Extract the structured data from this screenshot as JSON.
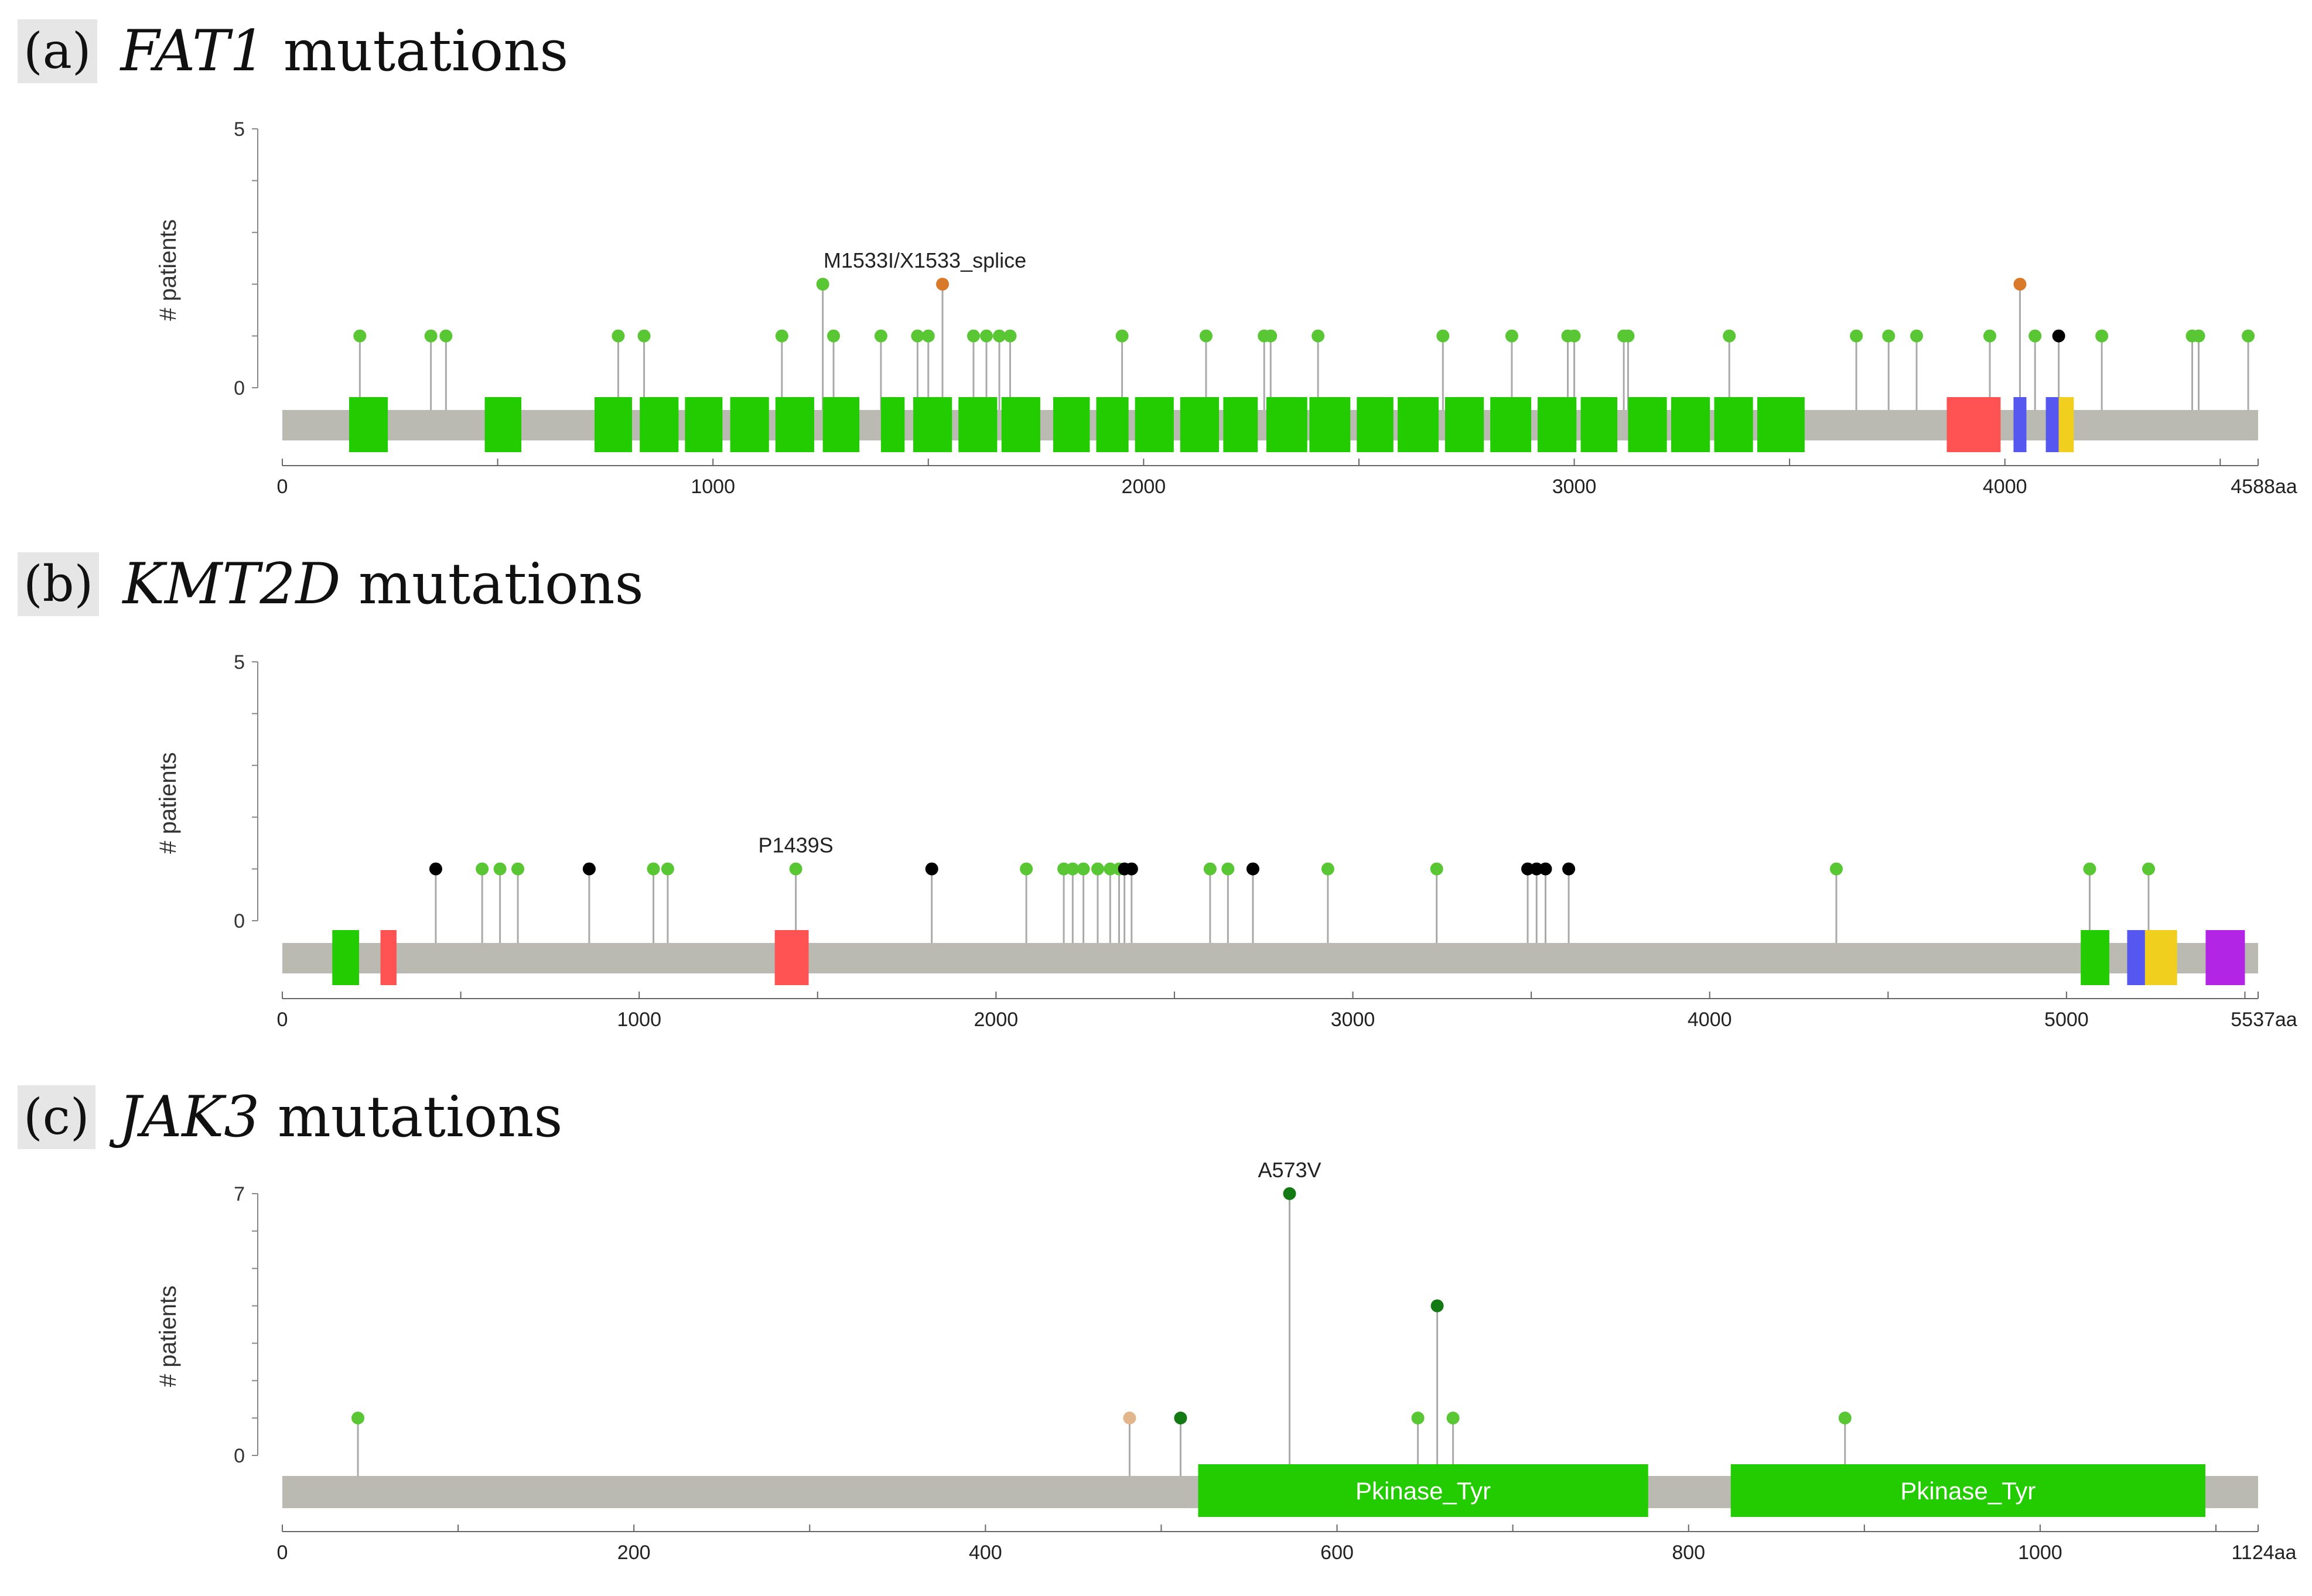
{
  "panels": [
    {
      "letter": "(a)",
      "gene": "FAT1",
      "title_suffix": "mutations"
    },
    {
      "letter": "(b)",
      "gene": "KMT2D",
      "title_suffix": "mutations"
    },
    {
      "letter": "(c)",
      "gene": "JAK3",
      "title_suffix": "mutations"
    }
  ],
  "chart_data": [
    {
      "type": "lollipop",
      "title": "FAT1 mutations",
      "ylabel": "# patients",
      "ylim": [
        0,
        5
      ],
      "yticks": [
        "0",
        "5"
      ],
      "protein_length": 4588,
      "xticks": [
        0,
        1000,
        2000,
        3000,
        4000
      ],
      "xtick_labels": [
        "0",
        "1000",
        "2000",
        "3000",
        "4000",
        "4588aa"
      ],
      "colors": {
        "missense": "#59c734",
        "truncating": "#000000",
        "splice": "#d97a2b",
        "domain_green": "#22cc00",
        "domain_red": "#ff5252",
        "domain_blue": "#5557f0",
        "domain_yellow": "#f0cf1e",
        "backbone": "#babab2"
      },
      "domains": [
        {
          "start": 155,
          "end": 245,
          "color": "domain_green"
        },
        {
          "start": 470,
          "end": 555,
          "color": "domain_green"
        },
        {
          "start": 725,
          "end": 812,
          "color": "domain_green"
        },
        {
          "start": 830,
          "end": 920,
          "color": "domain_green"
        },
        {
          "start": 935,
          "end": 1022,
          "color": "domain_green"
        },
        {
          "start": 1040,
          "end": 1130,
          "color": "domain_green"
        },
        {
          "start": 1145,
          "end": 1235,
          "color": "domain_green"
        },
        {
          "start": 1255,
          "end": 1340,
          "color": "domain_green"
        },
        {
          "start": 1390,
          "end": 1445,
          "color": "domain_green"
        },
        {
          "start": 1465,
          "end": 1555,
          "color": "domain_green"
        },
        {
          "start": 1570,
          "end": 1660,
          "color": "domain_green"
        },
        {
          "start": 1670,
          "end": 1760,
          "color": "domain_green"
        },
        {
          "start": 1790,
          "end": 1875,
          "color": "domain_green"
        },
        {
          "start": 1890,
          "end": 1965,
          "color": "domain_green"
        },
        {
          "start": 1980,
          "end": 2070,
          "color": "domain_green"
        },
        {
          "start": 2085,
          "end": 2175,
          "color": "domain_green"
        },
        {
          "start": 2185,
          "end": 2265,
          "color": "domain_green"
        },
        {
          "start": 2285,
          "end": 2380,
          "color": "domain_green"
        },
        {
          "start": 2385,
          "end": 2480,
          "color": "domain_green"
        },
        {
          "start": 2495,
          "end": 2580,
          "color": "domain_green"
        },
        {
          "start": 2590,
          "end": 2685,
          "color": "domain_green"
        },
        {
          "start": 2700,
          "end": 2790,
          "color": "domain_green"
        },
        {
          "start": 2805,
          "end": 2900,
          "color": "domain_green"
        },
        {
          "start": 2915,
          "end": 3005,
          "color": "domain_green"
        },
        {
          "start": 3015,
          "end": 3100,
          "color": "domain_green"
        },
        {
          "start": 3125,
          "end": 3215,
          "color": "domain_green"
        },
        {
          "start": 3225,
          "end": 3315,
          "color": "domain_green"
        },
        {
          "start": 3325,
          "end": 3415,
          "color": "domain_green"
        },
        {
          "start": 3425,
          "end": 3535,
          "color": "domain_green"
        },
        {
          "start": 3865,
          "end": 3990,
          "color": "domain_red"
        },
        {
          "start": 4020,
          "end": 4050,
          "color": "domain_blue"
        },
        {
          "start": 4095,
          "end": 4125,
          "color": "domain_blue"
        },
        {
          "start": 4125,
          "end": 4160,
          "color": "domain_yellow"
        }
      ],
      "mutations": [
        {
          "pos": 180,
          "count": 1,
          "type": "missense"
        },
        {
          "pos": 345,
          "count": 1,
          "type": "missense"
        },
        {
          "pos": 380,
          "count": 1,
          "type": "missense"
        },
        {
          "pos": 780,
          "count": 1,
          "type": "missense"
        },
        {
          "pos": 840,
          "count": 1,
          "type": "missense"
        },
        {
          "pos": 1160,
          "count": 1,
          "type": "missense"
        },
        {
          "pos": 1255,
          "count": 2,
          "type": "missense"
        },
        {
          "pos": 1280,
          "count": 1,
          "type": "missense"
        },
        {
          "pos": 1390,
          "count": 1,
          "type": "missense"
        },
        {
          "pos": 1475,
          "count": 1,
          "type": "missense"
        },
        {
          "pos": 1500,
          "count": 1,
          "type": "missense"
        },
        {
          "pos": 1533,
          "count": 2,
          "type": "splice"
        },
        {
          "pos": 1605,
          "count": 1,
          "type": "missense"
        },
        {
          "pos": 1635,
          "count": 1,
          "type": "missense"
        },
        {
          "pos": 1665,
          "count": 1,
          "type": "missense"
        },
        {
          "pos": 1690,
          "count": 1,
          "type": "missense"
        },
        {
          "pos": 1950,
          "count": 1,
          "type": "missense"
        },
        {
          "pos": 2145,
          "count": 1,
          "type": "missense"
        },
        {
          "pos": 2280,
          "count": 1,
          "type": "missense"
        },
        {
          "pos": 2295,
          "count": 1,
          "type": "missense"
        },
        {
          "pos": 2405,
          "count": 1,
          "type": "missense"
        },
        {
          "pos": 2695,
          "count": 1,
          "type": "missense"
        },
        {
          "pos": 2855,
          "count": 1,
          "type": "missense"
        },
        {
          "pos": 2985,
          "count": 1,
          "type": "missense"
        },
        {
          "pos": 3000,
          "count": 1,
          "type": "missense"
        },
        {
          "pos": 3115,
          "count": 1,
          "type": "missense"
        },
        {
          "pos": 3125,
          "count": 1,
          "type": "missense"
        },
        {
          "pos": 3360,
          "count": 1,
          "type": "missense"
        },
        {
          "pos": 3655,
          "count": 1,
          "type": "missense"
        },
        {
          "pos": 3730,
          "count": 1,
          "type": "missense"
        },
        {
          "pos": 3795,
          "count": 1,
          "type": "missense"
        },
        {
          "pos": 3965,
          "count": 1,
          "type": "missense"
        },
        {
          "pos": 4035,
          "count": 2,
          "type": "splice"
        },
        {
          "pos": 4070,
          "count": 1,
          "type": "missense"
        },
        {
          "pos": 4125,
          "count": 1,
          "type": "truncating"
        },
        {
          "pos": 4225,
          "count": 1,
          "type": "missense"
        },
        {
          "pos": 4435,
          "count": 1,
          "type": "missense"
        },
        {
          "pos": 4450,
          "count": 1,
          "type": "missense"
        },
        {
          "pos": 4565,
          "count": 1,
          "type": "missense"
        }
      ],
      "annotations": [
        {
          "text": "M1533I/X1533_splice",
          "pos": 1533,
          "count": 2
        }
      ]
    },
    {
      "type": "lollipop",
      "title": "KMT2D mutations",
      "ylabel": "# patients",
      "ylim": [
        0,
        5
      ],
      "yticks": [
        "0",
        "5"
      ],
      "protein_length": 5537,
      "xticks": [
        0,
        1000,
        2000,
        3000,
        4000,
        5000
      ],
      "xtick_labels": [
        "0",
        "1000",
        "2000",
        "3000",
        "4000",
        "5000",
        "5537aa"
      ],
      "colors": {
        "missense": "#59c734",
        "truncating": "#000000",
        "domain_green": "#22cc00",
        "domain_red": "#ff5252",
        "domain_blue": "#5557f0",
        "domain_yellow": "#f0cf1e",
        "domain_purple": "#b225e5",
        "backbone": "#babab2"
      },
      "domains": [
        {
          "start": 140,
          "end": 215,
          "color": "domain_green"
        },
        {
          "start": 275,
          "end": 320,
          "color": "domain_red"
        },
        {
          "start": 1380,
          "end": 1475,
          "color": "domain_red"
        },
        {
          "start": 5040,
          "end": 5120,
          "color": "domain_green"
        },
        {
          "start": 5170,
          "end": 5220,
          "color": "domain_blue"
        },
        {
          "start": 5220,
          "end": 5310,
          "color": "domain_yellow"
        },
        {
          "start": 5390,
          "end": 5500,
          "color": "domain_purple"
        }
      ],
      "mutations": [
        {
          "pos": 430,
          "count": 1,
          "type": "truncating"
        },
        {
          "pos": 560,
          "count": 1,
          "type": "missense"
        },
        {
          "pos": 610,
          "count": 1,
          "type": "missense"
        },
        {
          "pos": 660,
          "count": 1,
          "type": "missense"
        },
        {
          "pos": 860,
          "count": 1,
          "type": "truncating"
        },
        {
          "pos": 1040,
          "count": 1,
          "type": "missense"
        },
        {
          "pos": 1080,
          "count": 1,
          "type": "missense"
        },
        {
          "pos": 1439,
          "count": 1,
          "type": "missense"
        },
        {
          "pos": 1820,
          "count": 1,
          "type": "truncating"
        },
        {
          "pos": 2085,
          "count": 1,
          "type": "missense"
        },
        {
          "pos": 2190,
          "count": 1,
          "type": "missense"
        },
        {
          "pos": 2215,
          "count": 1,
          "type": "missense"
        },
        {
          "pos": 2245,
          "count": 1,
          "type": "missense"
        },
        {
          "pos": 2285,
          "count": 1,
          "type": "missense"
        },
        {
          "pos": 2320,
          "count": 1,
          "type": "missense"
        },
        {
          "pos": 2345,
          "count": 1,
          "type": "missense"
        },
        {
          "pos": 2360,
          "count": 1,
          "type": "truncating"
        },
        {
          "pos": 2380,
          "count": 1,
          "type": "truncating"
        },
        {
          "pos": 2600,
          "count": 1,
          "type": "missense"
        },
        {
          "pos": 2650,
          "count": 1,
          "type": "missense"
        },
        {
          "pos": 2720,
          "count": 1,
          "type": "truncating"
        },
        {
          "pos": 2930,
          "count": 1,
          "type": "missense"
        },
        {
          "pos": 3235,
          "count": 1,
          "type": "missense"
        },
        {
          "pos": 3490,
          "count": 1,
          "type": "truncating"
        },
        {
          "pos": 3515,
          "count": 1,
          "type": "truncating"
        },
        {
          "pos": 3540,
          "count": 1,
          "type": "truncating"
        },
        {
          "pos": 3605,
          "count": 1,
          "type": "truncating"
        },
        {
          "pos": 4355,
          "count": 1,
          "type": "missense"
        },
        {
          "pos": 5065,
          "count": 1,
          "type": "missense"
        },
        {
          "pos": 5230,
          "count": 1,
          "type": "missense"
        }
      ],
      "annotations": [
        {
          "text": "P1439S",
          "pos": 1439,
          "count": 1
        }
      ]
    },
    {
      "type": "lollipop",
      "title": "JAK3 mutations",
      "ylabel": "# patients",
      "ylim": [
        0,
        7
      ],
      "yticks": [
        "0",
        "7"
      ],
      "protein_length": 1124,
      "xticks": [
        0,
        200,
        400,
        600,
        800,
        1000
      ],
      "xtick_labels": [
        "0",
        "200",
        "400",
        "600",
        "800",
        "1000",
        "1124aa"
      ],
      "colors": {
        "missense": "#59c734",
        "missense_recurrent": "#137a13",
        "inframe": "#e2b68a",
        "domain_green": "#22cc00",
        "backbone": "#babab2"
      },
      "domains": [
        {
          "start": 521,
          "end": 777,
          "color": "domain_green",
          "label": "Pkinase_Tyr"
        },
        {
          "start": 824,
          "end": 1094,
          "color": "domain_green",
          "label": "Pkinase_Tyr"
        }
      ],
      "mutations": [
        {
          "pos": 43,
          "count": 1,
          "type": "missense"
        },
        {
          "pos": 482,
          "count": 1,
          "type": "inframe"
        },
        {
          "pos": 511,
          "count": 1,
          "type": "missense_recurrent"
        },
        {
          "pos": 573,
          "count": 7,
          "type": "missense_recurrent"
        },
        {
          "pos": 646,
          "count": 1,
          "type": "missense"
        },
        {
          "pos": 657,
          "count": 4,
          "type": "missense_recurrent"
        },
        {
          "pos": 666,
          "count": 1,
          "type": "missense"
        },
        {
          "pos": 889,
          "count": 1,
          "type": "missense"
        }
      ],
      "annotations": [
        {
          "text": "A573V",
          "pos": 573,
          "count": 7
        }
      ]
    }
  ]
}
